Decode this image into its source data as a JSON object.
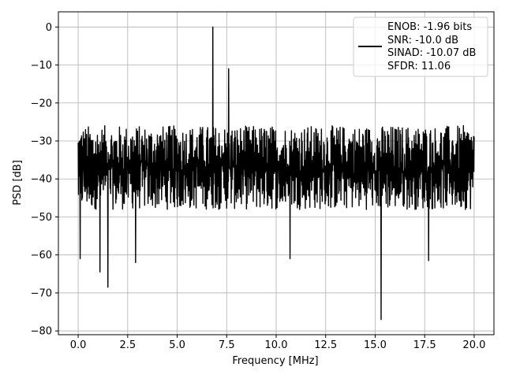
{
  "chart_data": {
    "type": "line",
    "xlabel": "Frequency [MHz]",
    "ylabel": "PSD [dB]",
    "xlim": [
      -1,
      21
    ],
    "ylim": [
      -81,
      4
    ],
    "xticks": [
      0.0,
      2.5,
      5.0,
      7.5,
      10.0,
      12.5,
      15.0,
      17.5,
      20.0
    ],
    "xtick_labels": [
      "0.0",
      "2.5",
      "5.0",
      "7.5",
      "10.0",
      "12.5",
      "15.0",
      "17.5",
      "20.0"
    ],
    "yticks": [
      0,
      -10,
      -20,
      -30,
      -40,
      -50,
      -60,
      -70,
      -80
    ],
    "ytick_labels": [
      "0",
      "−10",
      "−20",
      "−30",
      "−40",
      "−50",
      "−60",
      "−70",
      "−80"
    ],
    "grid": true,
    "legend_position": "top-right",
    "series": [
      {
        "name": "ENOB: -1.96 bits",
        "color": "#000000",
        "noise_band_db": [
          -50,
          -24
        ],
        "peaks": [
          {
            "x": 6.8,
            "y": 0
          },
          {
            "x": 7.6,
            "y": -11
          }
        ],
        "dips": [
          {
            "x": 0.1,
            "y": -61
          },
          {
            "x": 1.1,
            "y": -64.5
          },
          {
            "x": 1.5,
            "y": -68.5
          },
          {
            "x": 2.9,
            "y": -62
          },
          {
            "x": 10.7,
            "y": -61
          },
          {
            "x": 15.3,
            "y": -77
          },
          {
            "x": 17.7,
            "y": -61.5
          }
        ]
      }
    ]
  },
  "legend": {
    "lines": [
      "ENOB: -1.96 bits",
      "SNR: -10.0 dB",
      "SINAD: -10.07 dB",
      "SFDR: 11.06"
    ]
  }
}
